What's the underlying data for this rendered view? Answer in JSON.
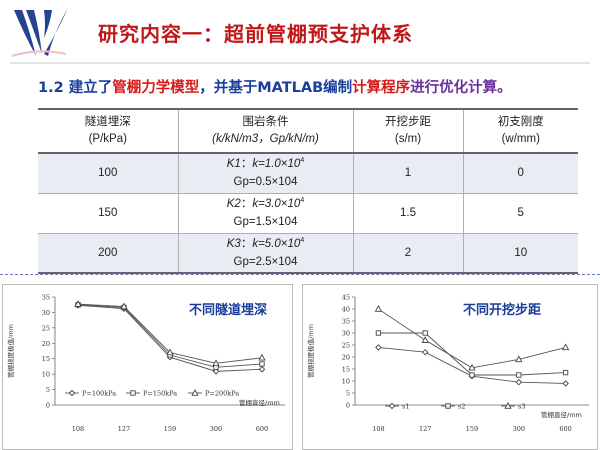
{
  "header": {
    "title": "研究内容一：超前管棚预支护体系",
    "subtitle": {
      "parts": [
        {
          "text": "1.2 建立了",
          "color": "blue"
        },
        {
          "text": "管棚力学模型",
          "color": "red"
        },
        {
          "text": "，并基于MATLAB编制",
          "color": "blue"
        },
        {
          "text": "计算程序",
          "color": "red"
        },
        {
          "text": "进行优化计算。",
          "color": "purple"
        }
      ]
    }
  },
  "colors": {
    "title": "#c01818",
    "blue_text": "#1a3e9c",
    "red_text": "#d51a1a",
    "purple_text": "#6b2f9e",
    "logo": "#27438f"
  },
  "logo": {
    "icon": "wave-logo-icon"
  },
  "table": {
    "headers": [
      {
        "line1": "隧道埋深",
        "line2": "(P/kPa)"
      },
      {
        "line1": "围岩条件",
        "line2": "(k/kN/m3，Gp/kN/m)"
      },
      {
        "line1": "开挖步距",
        "line2": "(s/m)"
      },
      {
        "line1": "初支刚度",
        "line2": "(w/mm)"
      }
    ],
    "rows": [
      {
        "depth": "100",
        "name": "K1",
        "k_val": "k=1.0×10",
        "k_exp": "4",
        "gp": "Gp=0.5×104",
        "step": "1",
        "stiffness": "0"
      },
      {
        "depth": "150",
        "name": "K2",
        "k_val": "k=3.0×10",
        "k_exp": "4",
        "gp": "Gp=1.5×104",
        "step": "1.5",
        "stiffness": "5"
      },
      {
        "depth": "200",
        "name": "K3",
        "k_val": "k=5.0×10",
        "k_exp": "4",
        "gp": "Gp=2.5×104",
        "step": "2",
        "stiffness": "10"
      }
    ]
  },
  "chart_data": [
    {
      "type": "line",
      "title": "不同隧道埋深",
      "xlabel": "管棚直径/mm",
      "ylabel": "管棚挠度极值/mm",
      "categories": [
        "108",
        "127",
        "159",
        "300",
        "600"
      ],
      "ylim": [
        0,
        35
      ],
      "yticks": [
        "0",
        "5",
        "10",
        "15",
        "20",
        "25",
        "30",
        "35"
      ],
      "grid": false,
      "legend": "bottom-left",
      "series": [
        {
          "name": "P=100kPa",
          "marker": "diamond",
          "values": [
            32.3,
            31.2,
            15.5,
            10.9,
            11.6
          ]
        },
        {
          "name": "P=150kPa",
          "marker": "square",
          "values": [
            32.5,
            31.6,
            16.2,
            12.2,
            13.3
          ]
        },
        {
          "name": "P=200kPa",
          "marker": "triangle",
          "values": [
            32.7,
            31.9,
            17.0,
            13.5,
            15.3
          ]
        }
      ]
    },
    {
      "type": "line",
      "title": "不同开挖步距",
      "xlabel": "管棚直径/mm",
      "ylabel": "管棚挠度极值/mm",
      "categories": [
        "108",
        "127",
        "159",
        "300",
        "600"
      ],
      "ylim": [
        0,
        45
      ],
      "yticks": [
        "0",
        "5",
        "10",
        "15",
        "20",
        "25",
        "30",
        "35",
        "40",
        "45"
      ],
      "grid": false,
      "legend": "bottom",
      "series": [
        {
          "name": "s1",
          "marker": "diamond",
          "values": [
            24,
            22,
            12,
            9.5,
            9
          ]
        },
        {
          "name": "s2",
          "marker": "square",
          "values": [
            30,
            30,
            12.5,
            12.5,
            13.5
          ]
        },
        {
          "name": "s3",
          "marker": "triangle",
          "values": [
            40,
            27,
            15.5,
            19,
            24
          ]
        }
      ]
    }
  ]
}
